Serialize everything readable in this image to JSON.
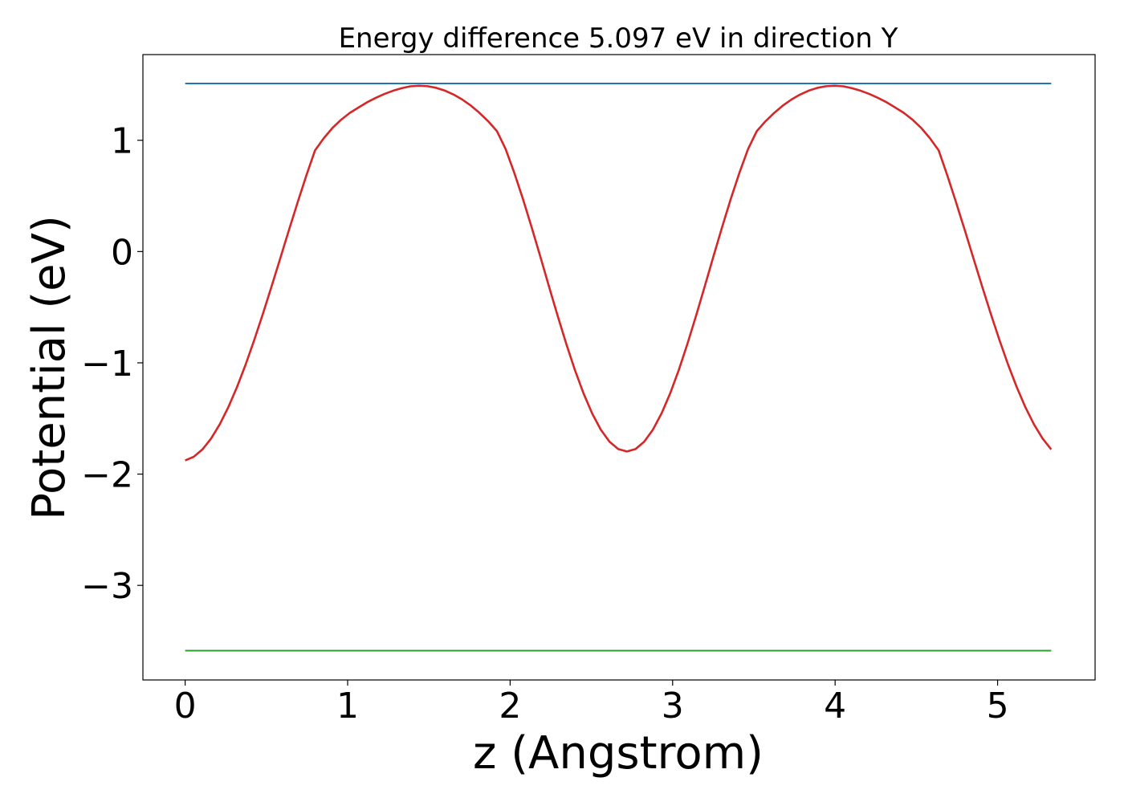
{
  "chart_data": {
    "type": "line",
    "title": "Energy difference 5.097 eV in direction Y",
    "xlabel": "z (Angstrom)",
    "ylabel": "Potential (eV)",
    "xlim": [
      -0.26,
      5.6
    ],
    "ylim": [
      -3.85,
      1.77
    ],
    "xticks": [
      0,
      1,
      2,
      3,
      4,
      5
    ],
    "yticks": [
      -3,
      -2,
      -1,
      0,
      1
    ],
    "xtick_labels": [
      "0",
      "1",
      "2",
      "3",
      "4",
      "5"
    ],
    "ytick_labels": [
      "−3",
      "−2",
      "−1",
      "0",
      "1"
    ],
    "grid": false,
    "series": [
      {
        "kind": "potential-curve",
        "color": "#d62728",
        "x": [
          0,
          0.0533,
          0.1066,
          0.1599,
          0.2132,
          0.2665,
          0.3198,
          0.3731,
          0.4264,
          0.4797,
          0.533,
          0.5863,
          0.6396,
          0.6929,
          0.7462,
          0.7995,
          0.8528,
          0.9061,
          0.9594,
          1.0127,
          1.066,
          1.1193,
          1.1726,
          1.2259,
          1.2792,
          1.3325,
          1.3858,
          1.4391,
          1.4924,
          1.5457,
          1.599,
          1.6523,
          1.7056,
          1.7589,
          1.8122,
          1.8655,
          1.9188,
          1.9721,
          2.0254,
          2.0787,
          2.132,
          2.1853,
          2.2386,
          2.2919,
          2.3452,
          2.3985,
          2.4518,
          2.5051,
          2.5584,
          2.6117,
          2.665,
          2.7183,
          2.7716,
          2.8249,
          2.8782,
          2.9315,
          2.9848,
          3.0381,
          3.0914,
          3.1447,
          3.198,
          3.2513,
          3.3046,
          3.3579,
          3.4112,
          3.4645,
          3.5178,
          3.5711,
          3.6244,
          3.6777,
          3.731,
          3.7843,
          3.8376,
          3.8909,
          3.9442,
          3.9975,
          4.0508,
          4.1041,
          4.1574,
          4.2107,
          4.264,
          4.3173,
          4.3706,
          4.4239,
          4.4772,
          4.5305,
          4.5838,
          4.6371,
          4.6904,
          4.7437,
          4.797,
          4.8503,
          4.9036,
          4.9569,
          5.0102,
          5.0635,
          5.1168,
          5.1701,
          5.2234,
          5.2767,
          5.33
        ],
        "y": [
          -1.877,
          -1.844,
          -1.778,
          -1.68,
          -1.552,
          -1.396,
          -1.215,
          -1.012,
          -0.79,
          -0.554,
          -0.308,
          -0.056,
          0.197,
          0.445,
          0.685,
          0.91,
          1.018,
          1.11,
          1.184,
          1.245,
          1.294,
          1.341,
          1.381,
          1.416,
          1.445,
          1.468,
          1.485,
          1.49,
          1.486,
          1.471,
          1.446,
          1.411,
          1.366,
          1.311,
          1.245,
          1.17,
          1.082,
          0.922,
          0.708,
          0.473,
          0.22,
          -0.043,
          -0.311,
          -0.575,
          -0.828,
          -1.064,
          -1.275,
          -1.456,
          -1.602,
          -1.709,
          -1.775,
          -1.797,
          -1.775,
          -1.709,
          -1.602,
          -1.456,
          -1.275,
          -1.064,
          -0.828,
          -0.575,
          -0.311,
          -0.043,
          0.22,
          0.473,
          0.708,
          0.922,
          1.082,
          1.17,
          1.245,
          1.311,
          1.366,
          1.411,
          1.446,
          1.471,
          1.486,
          1.49,
          1.485,
          1.468,
          1.445,
          1.416,
          1.381,
          1.341,
          1.294,
          1.245,
          1.184,
          1.11,
          1.018,
          0.91,
          0.685,
          0.445,
          0.197,
          -0.056,
          -0.308,
          -0.554,
          -0.79,
          -1.012,
          -1.215,
          -1.396,
          -1.552,
          -1.68,
          -1.778
        ]
      },
      {
        "kind": "upper-reference-line",
        "color": "#1f77b4",
        "x": [
          0,
          5.33
        ],
        "y": [
          1.51,
          1.51
        ]
      },
      {
        "kind": "lower-reference-line",
        "color": "#2ca02c",
        "x": [
          0,
          5.33
        ],
        "y": [
          -3.587,
          -3.587
        ]
      }
    ]
  }
}
